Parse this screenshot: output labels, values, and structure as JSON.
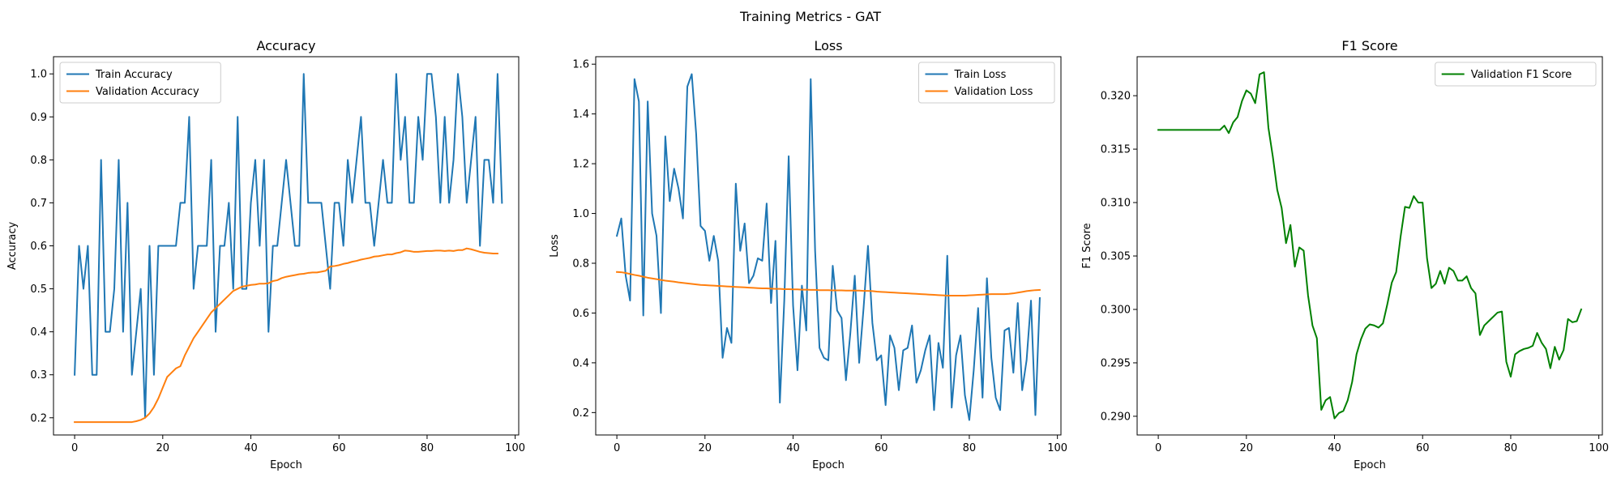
{
  "figure_title": "Training Metrics - GAT",
  "chart_data": [
    {
      "type": "line",
      "title": "Accuracy",
      "xlabel": "Epoch",
      "ylabel": "Accuracy",
      "xlim": [
        -4.8,
        100.8
      ],
      "ylim": [
        0.16,
        1.04
      ],
      "xticks": [
        0,
        20,
        40,
        60,
        80,
        100
      ],
      "yticks": [
        0.2,
        0.3,
        0.4,
        0.5,
        0.6,
        0.7,
        0.8,
        0.9,
        1.0
      ],
      "ytick_decimals": 1,
      "legend_position": "top-left",
      "series": [
        {
          "name": "Train Accuracy",
          "color": "#1f77b4",
          "values": [
            0.3,
            0.6,
            0.5,
            0.6,
            0.3,
            0.3,
            0.8,
            0.4,
            0.4,
            0.5,
            0.8,
            0.4,
            0.7,
            0.3,
            0.4,
            0.5,
            0.2,
            0.6,
            0.3,
            0.6,
            0.6,
            0.6,
            0.6,
            0.6,
            0.7,
            0.7,
            0.9,
            0.5,
            0.6,
            0.6,
            0.6,
            0.8,
            0.4,
            0.6,
            0.6,
            0.7,
            0.5,
            0.9,
            0.5,
            0.5,
            0.7,
            0.8,
            0.6,
            0.8,
            0.4,
            0.6,
            0.6,
            0.7,
            0.8,
            0.7,
            0.6,
            0.6,
            1.0,
            0.7,
            0.7,
            0.7,
            0.7,
            0.6,
            0.5,
            0.7,
            0.7,
            0.6,
            0.8,
            0.7,
            0.8,
            0.9,
            0.7,
            0.7,
            0.6,
            0.7,
            0.8,
            0.7,
            0.7,
            1.0,
            0.8,
            0.9,
            0.7,
            0.7,
            0.9,
            0.8,
            1.0,
            1.0,
            0.9,
            0.7,
            0.9,
            0.7,
            0.8,
            1.0,
            0.9,
            0.7,
            0.8,
            0.9,
            0.6,
            0.8,
            0.8,
            0.7,
            1.0,
            0.7
          ]
        },
        {
          "name": "Validation Accuracy",
          "color": "#ff7f0e",
          "values": [
            0.19,
            0.19,
            0.19,
            0.19,
            0.19,
            0.19,
            0.19,
            0.19,
            0.19,
            0.19,
            0.19,
            0.19,
            0.19,
            0.19,
            0.192,
            0.195,
            0.2,
            0.21,
            0.225,
            0.245,
            0.27,
            0.295,
            0.305,
            0.315,
            0.32,
            0.345,
            0.365,
            0.385,
            0.4,
            0.415,
            0.43,
            0.445,
            0.455,
            0.465,
            0.475,
            0.485,
            0.495,
            0.5,
            0.505,
            0.507,
            0.509,
            0.51,
            0.512,
            0.512,
            0.513,
            0.518,
            0.52,
            0.525,
            0.528,
            0.53,
            0.532,
            0.534,
            0.535,
            0.537,
            0.538,
            0.538,
            0.54,
            0.542,
            0.552,
            0.553,
            0.555,
            0.558,
            0.56,
            0.563,
            0.565,
            0.568,
            0.57,
            0.572,
            0.575,
            0.576,
            0.578,
            0.58,
            0.58,
            0.583,
            0.585,
            0.589,
            0.588,
            0.586,
            0.586,
            0.587,
            0.588,
            0.588,
            0.589,
            0.589,
            0.588,
            0.589,
            0.588,
            0.59,
            0.59,
            0.594,
            0.592,
            0.589,
            0.586,
            0.584,
            0.583,
            0.582,
            0.582
          ]
        }
      ]
    },
    {
      "type": "line",
      "title": "Loss",
      "xlabel": "Epoch",
      "ylabel": "Loss",
      "xlim": [
        -4.8,
        100.8
      ],
      "ylim": [
        0.11,
        1.63
      ],
      "xticks": [
        0,
        20,
        40,
        60,
        80,
        100
      ],
      "yticks": [
        0.2,
        0.4,
        0.6,
        0.8,
        1.0,
        1.2,
        1.4,
        1.6
      ],
      "ytick_decimals": 1,
      "legend_position": "top-right",
      "series": [
        {
          "name": "Train Loss",
          "color": "#1f77b4",
          "values": [
            0.91,
            0.98,
            0.75,
            0.65,
            1.54,
            1.45,
            0.59,
            1.45,
            1.0,
            0.91,
            0.6,
            1.31,
            1.05,
            1.18,
            1.1,
            0.98,
            1.51,
            1.56,
            1.32,
            0.95,
            0.93,
            0.81,
            0.91,
            0.81,
            0.42,
            0.54,
            0.48,
            1.12,
            0.85,
            0.96,
            0.72,
            0.75,
            0.82,
            0.81,
            1.04,
            0.64,
            0.89,
            0.24,
            0.65,
            1.23,
            0.63,
            0.37,
            0.71,
            0.53,
            1.54,
            0.85,
            0.46,
            0.42,
            0.41,
            0.79,
            0.61,
            0.58,
            0.33,
            0.52,
            0.75,
            0.4,
            0.62,
            0.87,
            0.56,
            0.41,
            0.43,
            0.23,
            0.51,
            0.46,
            0.29,
            0.45,
            0.46,
            0.55,
            0.32,
            0.37,
            0.45,
            0.51,
            0.21,
            0.48,
            0.38,
            0.83,
            0.22,
            0.43,
            0.51,
            0.27,
            0.17,
            0.37,
            0.62,
            0.26,
            0.74,
            0.42,
            0.26,
            0.21,
            0.53,
            0.54,
            0.36,
            0.64,
            0.29,
            0.41,
            0.65,
            0.19,
            0.66
          ]
        },
        {
          "name": "Validation Loss",
          "color": "#ff7f0e",
          "values": [
            0.765,
            0.764,
            0.761,
            0.757,
            0.753,
            0.75,
            0.746,
            0.742,
            0.739,
            0.736,
            0.733,
            0.73,
            0.728,
            0.726,
            0.723,
            0.721,
            0.719,
            0.717,
            0.715,
            0.713,
            0.712,
            0.711,
            0.71,
            0.709,
            0.708,
            0.707,
            0.706,
            0.705,
            0.704,
            0.703,
            0.702,
            0.701,
            0.7,
            0.699,
            0.699,
            0.698,
            0.697,
            0.697,
            0.696,
            0.696,
            0.695,
            0.695,
            0.694,
            0.694,
            0.693,
            0.693,
            0.692,
            0.692,
            0.692,
            0.691,
            0.691,
            0.691,
            0.69,
            0.69,
            0.69,
            0.69,
            0.689,
            0.689,
            0.688,
            0.686,
            0.685,
            0.684,
            0.683,
            0.682,
            0.681,
            0.68,
            0.679,
            0.678,
            0.677,
            0.676,
            0.675,
            0.674,
            0.673,
            0.672,
            0.671,
            0.67,
            0.67,
            0.67,
            0.67,
            0.67,
            0.671,
            0.672,
            0.673,
            0.674,
            0.675,
            0.676,
            0.676,
            0.676,
            0.676,
            0.677,
            0.679,
            0.682,
            0.685,
            0.688,
            0.69,
            0.692,
            0.693
          ]
        }
      ]
    },
    {
      "type": "line",
      "title": "F1 Score",
      "xlabel": "Epoch",
      "ylabel": "F1 Score",
      "xlim": [
        -4.8,
        100.8
      ],
      "ylim": [
        0.28825,
        0.32365
      ],
      "xticks": [
        0,
        20,
        40,
        60,
        80,
        100
      ],
      "yticks": [
        0.29,
        0.295,
        0.3,
        0.305,
        0.31,
        0.315,
        0.32
      ],
      "ytick_decimals": 3,
      "legend_position": "top-right",
      "series": [
        {
          "name": "Validation F1 Score",
          "color": "#008000",
          "values": [
            0.3168,
            0.3168,
            0.3168,
            0.3168,
            0.3168,
            0.3168,
            0.3168,
            0.3168,
            0.3168,
            0.3168,
            0.3168,
            0.3168,
            0.3168,
            0.3168,
            0.3168,
            0.3172,
            0.3165,
            0.3175,
            0.318,
            0.3195,
            0.3205,
            0.3202,
            0.3193,
            0.322,
            0.3222,
            0.317,
            0.3143,
            0.3112,
            0.3095,
            0.3062,
            0.3079,
            0.304,
            0.3058,
            0.3055,
            0.3013,
            0.2985,
            0.2973,
            0.2906,
            0.2915,
            0.2918,
            0.2898,
            0.2903,
            0.2905,
            0.2915,
            0.2932,
            0.2958,
            0.2972,
            0.2982,
            0.2986,
            0.2985,
            0.2983,
            0.2987,
            0.3005,
            0.3025,
            0.3035,
            0.3068,
            0.3096,
            0.3095,
            0.3106,
            0.31,
            0.31,
            0.3048,
            0.302,
            0.3024,
            0.3036,
            0.3024,
            0.3039,
            0.3036,
            0.3027,
            0.3027,
            0.3031,
            0.302,
            0.3015,
            0.2976,
            0.2985,
            0.2989,
            0.2993,
            0.2997,
            0.2998,
            0.2951,
            0.2937,
            0.2958,
            0.2961,
            0.2963,
            0.2964,
            0.2966,
            0.2978,
            0.2969,
            0.2963,
            0.2945,
            0.2965,
            0.2953,
            0.2962,
            0.2991,
            0.2988,
            0.2989,
            0.3
          ]
        }
      ]
    }
  ]
}
